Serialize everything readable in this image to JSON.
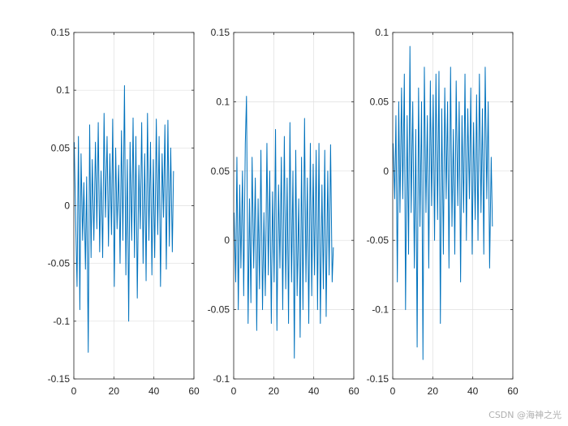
{
  "chart_data": [
    {
      "type": "line",
      "title": "",
      "xlabel": "",
      "ylabel": "",
      "xlim": [
        0,
        60
      ],
      "ylim": [
        -0.15,
        0.15
      ],
      "xticks": [
        0,
        20,
        40,
        60
      ],
      "yticks": [
        -0.15,
        -0.1,
        -0.05,
        0,
        0.05,
        0.1,
        0.15
      ],
      "ytick_labels": [
        "-0.15",
        "-0.1",
        "-0.05",
        "0",
        "0.05",
        "0.1",
        "0.15"
      ],
      "grid": true,
      "series_color": "#0072BD",
      "series": [
        {
          "x": [
            0.2,
            1,
            1.6,
            2.3,
            3,
            3.6,
            4.4,
            5,
            5.8,
            6.4,
            7.2,
            7.9,
            8.6,
            9.2,
            10,
            10.8,
            11.5,
            12.2,
            12.9,
            13.6,
            14.4,
            15.1,
            15.8,
            16.6,
            17.3,
            18,
            18.8,
            19.4,
            20.2,
            20.9,
            21.6,
            22.4,
            23.1,
            23.8,
            24.5,
            25.3,
            26,
            26.7,
            27.4,
            28.1,
            28.9,
            29.6,
            30.3,
            31,
            31.7,
            32.5,
            33.2,
            33.9,
            34.6,
            35.4,
            36.1,
            36.8,
            37.5,
            38.3,
            39,
            39.7,
            40.4,
            41.2,
            41.9,
            42.6,
            43.3,
            44.1,
            44.8,
            45.5,
            46.2,
            47,
            47.7,
            48.4,
            49.2,
            49.8
          ],
          "y": [
            0.055,
            -0.02,
            -0.07,
            0.06,
            -0.09,
            0.045,
            -0.03,
            0.02,
            -0.055,
            0.025,
            -0.127,
            0.07,
            -0.045,
            0.04,
            -0.03,
            0.055,
            -0.02,
            0.072,
            -0.04,
            0.03,
            -0.045,
            0.08,
            -0.01,
            0.06,
            -0.035,
            0.045,
            -0.025,
            0.075,
            -0.07,
            0.05,
            -0.02,
            0.035,
            -0.05,
            0.065,
            -0.03,
            0.104,
            -0.06,
            0.04,
            -0.1,
            0.055,
            -0.03,
            0.076,
            -0.045,
            0.06,
            -0.08,
            0.035,
            -0.02,
            0.072,
            -0.05,
            0.045,
            -0.065,
            0.08,
            -0.03,
            0.055,
            -0.06,
            0.04,
            -0.045,
            0.075,
            -0.025,
            0.06,
            -0.07,
            0.045,
            -0.01,
            0.07,
            -0.055,
            0.074,
            -0.035,
            0.05,
            -0.04,
            0.03
          ]
        }
      ]
    },
    {
      "type": "line",
      "title": "",
      "xlabel": "",
      "ylabel": "",
      "xlim": [
        0,
        60
      ],
      "ylim": [
        -0.1,
        0.15
      ],
      "xticks": [
        0,
        20,
        40,
        60
      ],
      "yticks": [
        -0.1,
        -0.05,
        0,
        0.05,
        0.1,
        0.15
      ],
      "ytick_labels": [
        "-0.1",
        "-0.05",
        "0",
        "0.05",
        "0.1",
        "0.15"
      ],
      "grid": true,
      "series_color": "#0072BD",
      "series": [
        {
          "x": [
            0.2,
            1,
            1.6,
            2.3,
            3,
            3.6,
            4.4,
            5,
            5.8,
            6.4,
            7.2,
            7.9,
            8.6,
            9.2,
            10,
            10.8,
            11.5,
            12.2,
            12.9,
            13.6,
            14.4,
            15.1,
            15.8,
            16.6,
            17.3,
            18,
            18.8,
            19.4,
            20.2,
            20.9,
            21.6,
            22.4,
            23.1,
            23.8,
            24.5,
            25.3,
            26,
            26.7,
            27.4,
            28.1,
            28.9,
            29.6,
            30.3,
            31,
            31.7,
            32.5,
            33.2,
            33.9,
            34.6,
            35.4,
            36.1,
            36.8,
            37.5,
            38.3,
            39,
            39.7,
            40.4,
            41.2,
            41.9,
            42.6,
            43.3,
            44.1,
            44.8,
            45.5,
            46.2,
            47,
            47.7,
            48.4,
            49.2,
            49.8
          ],
          "y": [
            0.02,
            -0.03,
            0.06,
            -0.05,
            0.04,
            -0.02,
            0.05,
            -0.04,
            0.07,
            0.104,
            -0.06,
            0.03,
            -0.045,
            0.06,
            -0.02,
            0.045,
            -0.065,
            0.03,
            -0.035,
            0.065,
            -0.05,
            0.02,
            -0.04,
            0.07,
            -0.025,
            0.05,
            -0.06,
            0.035,
            -0.03,
            0.08,
            -0.065,
            0.04,
            -0.02,
            0.06,
            -0.05,
            0.075,
            -0.035,
            0.045,
            -0.06,
            0.085,
            -0.03,
            0.05,
            -0.085,
            0.065,
            -0.04,
            0.03,
            -0.07,
            0.06,
            -0.05,
            0.088,
            -0.03,
            0.045,
            -0.06,
            0.07,
            -0.04,
            0.055,
            -0.025,
            0.065,
            -0.05,
            0.07,
            -0.06,
            0.04,
            -0.035,
            0.065,
            -0.055,
            0.05,
            -0.025,
            0.069,
            -0.03,
            -0.005
          ]
        }
      ]
    },
    {
      "type": "line",
      "title": "",
      "xlabel": "",
      "ylabel": "",
      "xlim": [
        0,
        60
      ],
      "ylim": [
        -0.15,
        0.1
      ],
      "xticks": [
        0,
        20,
        40,
        60
      ],
      "yticks": [
        -0.15,
        -0.1,
        -0.05,
        0,
        0.05,
        0.1
      ],
      "ytick_labels": [
        "-0.15",
        "-0.1",
        "-0.05",
        "0",
        "0.05",
        "0.1"
      ],
      "grid": true,
      "series_color": "#0072BD",
      "series": [
        {
          "x": [
            0.2,
            1,
            1.6,
            2.3,
            3,
            3.6,
            4.4,
            5,
            5.8,
            6.4,
            7.2,
            7.9,
            8.6,
            9.2,
            10,
            10.8,
            11.5,
            12.2,
            12.9,
            13.6,
            14.4,
            15.1,
            15.8,
            16.6,
            17.3,
            18,
            18.8,
            19.4,
            20.2,
            20.9,
            21.6,
            22.4,
            23.1,
            23.8,
            24.5,
            25.3,
            26,
            26.7,
            27.4,
            28.1,
            28.9,
            29.6,
            30.3,
            31,
            31.7,
            32.5,
            33.2,
            33.9,
            34.6,
            35.4,
            36.1,
            36.8,
            37.5,
            38.3,
            39,
            39.7,
            40.4,
            41.2,
            41.9,
            42.6,
            43.3,
            44.1,
            44.8,
            45.5,
            46.2,
            47,
            47.7,
            48.4,
            49.2,
            49.8
          ],
          "y": [
            0.02,
            -0.02,
            0.04,
            -0.08,
            0.05,
            -0.03,
            0.06,
            -0.02,
            0.07,
            -0.1,
            0.04,
            -0.06,
            0.09,
            -0.03,
            0.05,
            -0.07,
            0.03,
            -0.127,
            0.06,
            -0.04,
            0.05,
            -0.136,
            0.075,
            -0.03,
            0.04,
            -0.07,
            0.065,
            -0.025,
            0.055,
            -0.05,
            0.07,
            -0.035,
            0.072,
            -0.11,
            0.045,
            -0.06,
            0.06,
            -0.02,
            0.05,
            -0.07,
            0.075,
            -0.04,
            0.03,
            -0.06,
            0.065,
            -0.025,
            0.05,
            -0.08,
            0.04,
            -0.03,
            0.07,
            -0.05,
            0.045,
            -0.02,
            0.06,
            -0.06,
            0.035,
            -0.035,
            0.055,
            -0.05,
            0.07,
            -0.03,
            0.045,
            -0.06,
            0.075,
            -0.02,
            0.05,
            -0.07,
            0.01,
            -0.04
          ]
        }
      ]
    }
  ],
  "watermark": "CSDN @海神之光"
}
